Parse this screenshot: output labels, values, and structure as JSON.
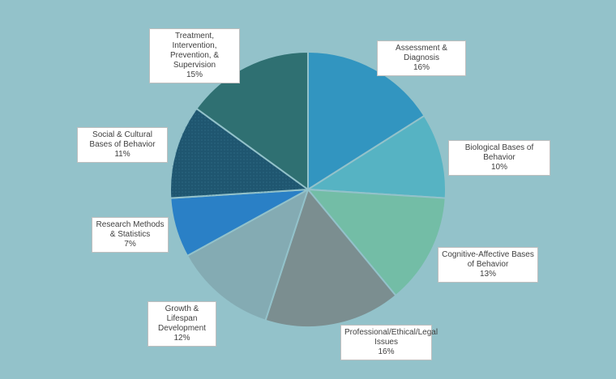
{
  "chart_data": {
    "type": "pie",
    "title": "",
    "start_angle_deg": 0,
    "direction": "clockwise",
    "legend": "none",
    "slices": [
      {
        "label": "Assessment & Diagnosis",
        "value": 16,
        "value_label": "16%",
        "color": "#3295c0"
      },
      {
        "label": "Biological Bases of Behavior",
        "value": 10,
        "value_label": "10%",
        "color": "#56b3c3"
      },
      {
        "label": "Cognitive-Affective Bases of Behavior",
        "value": 13,
        "value_label": "13%",
        "color": "#73bda6"
      },
      {
        "label": "Professional/Ethical/Legal Issues",
        "value": 16,
        "value_label": "16%",
        "color": "#7b8e90"
      },
      {
        "label": "Growth & Lifespan Development",
        "value": 12,
        "value_label": "12%",
        "color": "#84abb3"
      },
      {
        "label": "Research Methods & Statistics",
        "value": 7,
        "value_label": "7%",
        "color": "#2a80c6"
      },
      {
        "label": "Social & Cultural Bases of Behavior",
        "value": 11,
        "value_label": "11%",
        "color": "#1f5670"
      },
      {
        "label": "Treatment, Intervention, Prevention, & Supervision",
        "value": 15,
        "value_label": "15%",
        "color": "#2f7072"
      }
    ]
  }
}
